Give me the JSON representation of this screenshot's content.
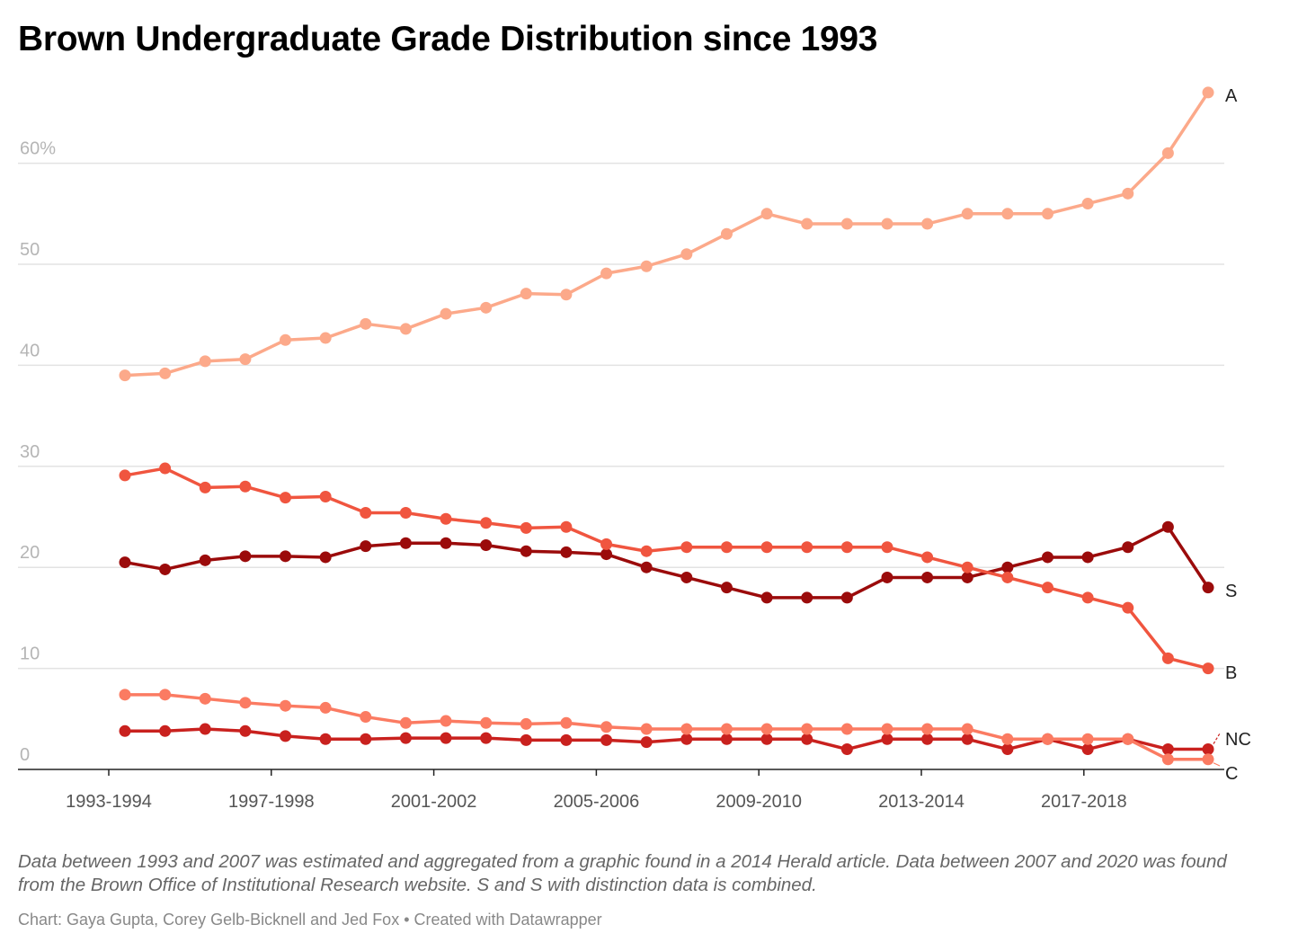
{
  "chart_data": {
    "type": "line",
    "title": "Brown Undergraduate Grade Distribution since 1993",
    "x": [
      "1993-1994",
      "1994-1995",
      "1995-1996",
      "1996-1997",
      "1997-1998",
      "1998-1999",
      "1999-2000",
      "2000-2001",
      "2001-2002",
      "2002-2003",
      "2003-2004",
      "2004-2005",
      "2005-2006",
      "2006-2007",
      "2007-2008",
      "2008-2009",
      "2009-2010",
      "2010-2011",
      "2011-2012",
      "2012-2013",
      "2013-2014",
      "2014-2015",
      "2015-2016",
      "2016-2017",
      "2017-2018",
      "2018-2019",
      "2019-2020",
      "2020-2021"
    ],
    "x_tick_labels": [
      "1993-1994",
      "1997-1998",
      "2001-2002",
      "2005-2006",
      "2009-2010",
      "2013-2014",
      "2017-2018"
    ],
    "y_tick_labels": [
      "0",
      "10",
      "20",
      "30",
      "40",
      "50",
      "60%"
    ],
    "y_ticks": [
      0,
      10,
      20,
      30,
      40,
      50,
      60
    ],
    "ylim": [
      0,
      68
    ],
    "xlabel": "",
    "ylabel": "",
    "grid": true,
    "legend": "direct labels at line ends (right)",
    "series": [
      {
        "name": "A",
        "color": "#fca98a",
        "values": [
          39.0,
          39.2,
          40.4,
          40.6,
          42.5,
          42.7,
          44.1,
          43.6,
          45.1,
          45.7,
          47.1,
          47.0,
          49.1,
          49.8,
          51,
          53,
          55,
          54,
          54,
          54,
          54,
          55,
          55,
          55,
          56,
          57,
          61,
          67
        ]
      },
      {
        "name": "S",
        "color": "#9b0b0b",
        "values": [
          20.5,
          19.8,
          20.7,
          21.1,
          21.1,
          21.0,
          22.1,
          22.4,
          22.4,
          22.2,
          21.6,
          21.5,
          21.3,
          20,
          19,
          18,
          17,
          17,
          17,
          19,
          19,
          19,
          20,
          21,
          21,
          22,
          24,
          18
        ]
      },
      {
        "name": "B",
        "color": "#f0553f",
        "values": [
          29.1,
          29.8,
          27.9,
          28.0,
          26.9,
          27.0,
          25.4,
          25.4,
          24.8,
          24.4,
          23.9,
          24.0,
          22.3,
          21.6,
          22,
          22,
          22,
          22,
          22,
          22,
          21,
          20,
          19,
          18,
          17,
          16,
          11,
          10
        ]
      },
      {
        "name": "NC",
        "color": "#c9211e",
        "values": [
          3.8,
          3.8,
          4.0,
          3.8,
          3.3,
          3.0,
          3.0,
          3.1,
          3.1,
          3.1,
          2.9,
          2.9,
          2.9,
          2.7,
          3,
          3,
          3,
          3,
          2,
          3,
          3,
          3,
          2,
          3,
          2,
          3,
          2,
          2
        ]
      },
      {
        "name": "C",
        "color": "#fb7b62",
        "values": [
          7.4,
          7.4,
          7.0,
          6.6,
          6.3,
          6.1,
          5.2,
          4.6,
          4.8,
          4.6,
          4.5,
          4.6,
          4.2,
          4.0,
          4,
          4,
          4,
          4,
          4,
          4,
          4,
          4,
          3,
          3,
          3,
          3,
          1,
          1
        ]
      }
    ]
  },
  "notes": "Data between 1993 and 2007 was estimated and aggregated from a graphic found in a 2014 Herald article. Data between 2007 and 2020 was found from the Brown Office of Institutional Research website. S and S with distinction data is combined.",
  "byline": "Chart: Gaya Gupta, Corey Gelb-Bicknell and Jed Fox • Created with Datawrapper"
}
